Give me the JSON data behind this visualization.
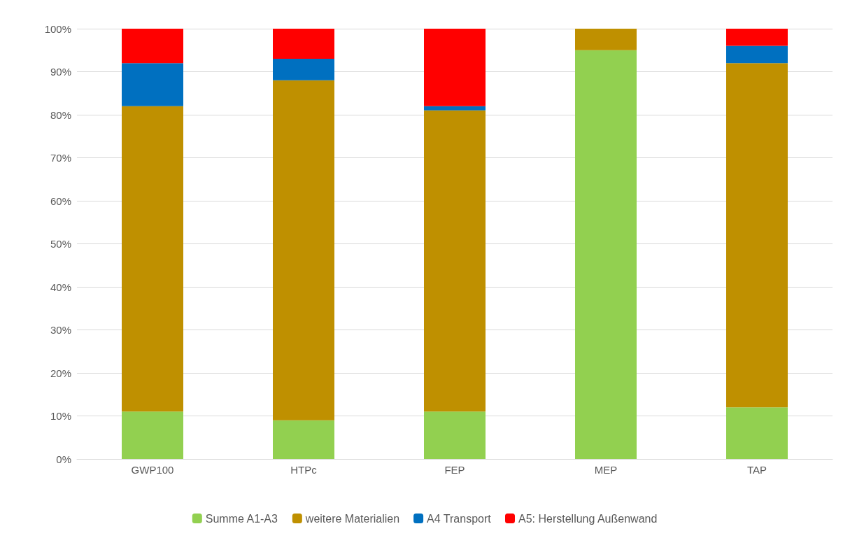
{
  "chart_data": {
    "type": "bar",
    "stacked": true,
    "categories": [
      "GWP100",
      "HTPc",
      "FEP",
      "MEP",
      "TAP"
    ],
    "series": [
      {
        "name": "Summe A1-A3",
        "color": "#92d050",
        "values": [
          11,
          9,
          11,
          95,
          12
        ]
      },
      {
        "name": "weitere Materialien",
        "color": "#bf9000",
        "values": [
          71,
          79,
          70,
          5,
          80
        ]
      },
      {
        "name": "A4 Transport",
        "color": "#0070c0",
        "values": [
          10,
          5,
          1,
          0,
          4
        ]
      },
      {
        "name": "A5: Herstellung Außenwand",
        "color": "#ff0000",
        "values": [
          8,
          7,
          18,
          0,
          4
        ]
      }
    ],
    "ylim": [
      0,
      100
    ],
    "yticks": [
      {
        "value": 0,
        "label": "0%"
      },
      {
        "value": 10,
        "label": "10%"
      },
      {
        "value": 20,
        "label": "20%"
      },
      {
        "value": 30,
        "label": "30%"
      },
      {
        "value": 40,
        "label": "40%"
      },
      {
        "value": 50,
        "label": "50%"
      },
      {
        "value": 60,
        "label": "60%"
      },
      {
        "value": 70,
        "label": "70%"
      },
      {
        "value": 80,
        "label": "80%"
      },
      {
        "value": 90,
        "label": "90%"
      },
      {
        "value": 100,
        "label": "100%"
      }
    ],
    "grid": "y",
    "legend": "bottom"
  }
}
